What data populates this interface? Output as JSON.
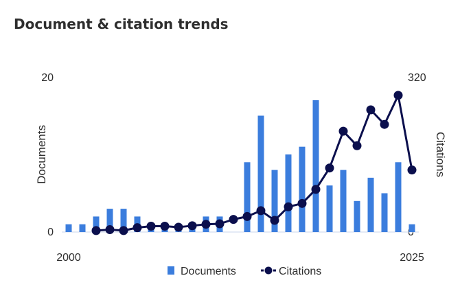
{
  "chart_data": {
    "type": "bar+line",
    "title": "Document & citation trends",
    "x": [
      2000,
      2001,
      2002,
      2003,
      2004,
      2005,
      2006,
      2007,
      2008,
      2009,
      2010,
      2011,
      2012,
      2013,
      2014,
      2015,
      2016,
      2017,
      2018,
      2019,
      2020,
      2021,
      2022,
      2023,
      2024,
      2025
    ],
    "x_tick_labels": [
      "2000",
      "2025"
    ],
    "series": [
      {
        "name": "Documents",
        "type": "bar",
        "axis": "left",
        "values": [
          1,
          1,
          2,
          3,
          3,
          2,
          1,
          1,
          1,
          1,
          2,
          2,
          0,
          9,
          15,
          8,
          10,
          11,
          17,
          6,
          8,
          4,
          7,
          5,
          9,
          1
        ]
      },
      {
        "name": "Citations",
        "type": "line",
        "axis": "right",
        "x": [
          2002,
          2003,
          2004,
          2005,
          2006,
          2007,
          2008,
          2009,
          2010,
          2011,
          2012,
          2013,
          2014,
          2015,
          2016,
          2017,
          2018,
          2019,
          2020,
          2021,
          2022,
          2023,
          2024,
          2025
        ],
        "values": [
          3,
          5,
          3,
          9,
          12,
          12,
          10,
          13,
          16,
          17,
          26,
          32,
          44,
          24,
          52,
          59,
          88,
          132,
          208,
          178,
          252,
          222,
          282,
          128
        ]
      }
    ],
    "y_left": {
      "label": "Documents",
      "min": 0,
      "max": 20,
      "ticks": [
        "0",
        "20"
      ]
    },
    "y_right": {
      "label": "Citations",
      "min": 0,
      "max": 320,
      "ticks": [
        "0",
        "320"
      ]
    },
    "legend": {
      "position": "bottom-center",
      "items": [
        "Documents",
        "Citations"
      ]
    },
    "grid": false,
    "colors": {
      "bars": "#3b7ddd",
      "line": "#0b0f4d",
      "text": "#2e2e2e",
      "baseline": "#c9d4ee"
    }
  }
}
